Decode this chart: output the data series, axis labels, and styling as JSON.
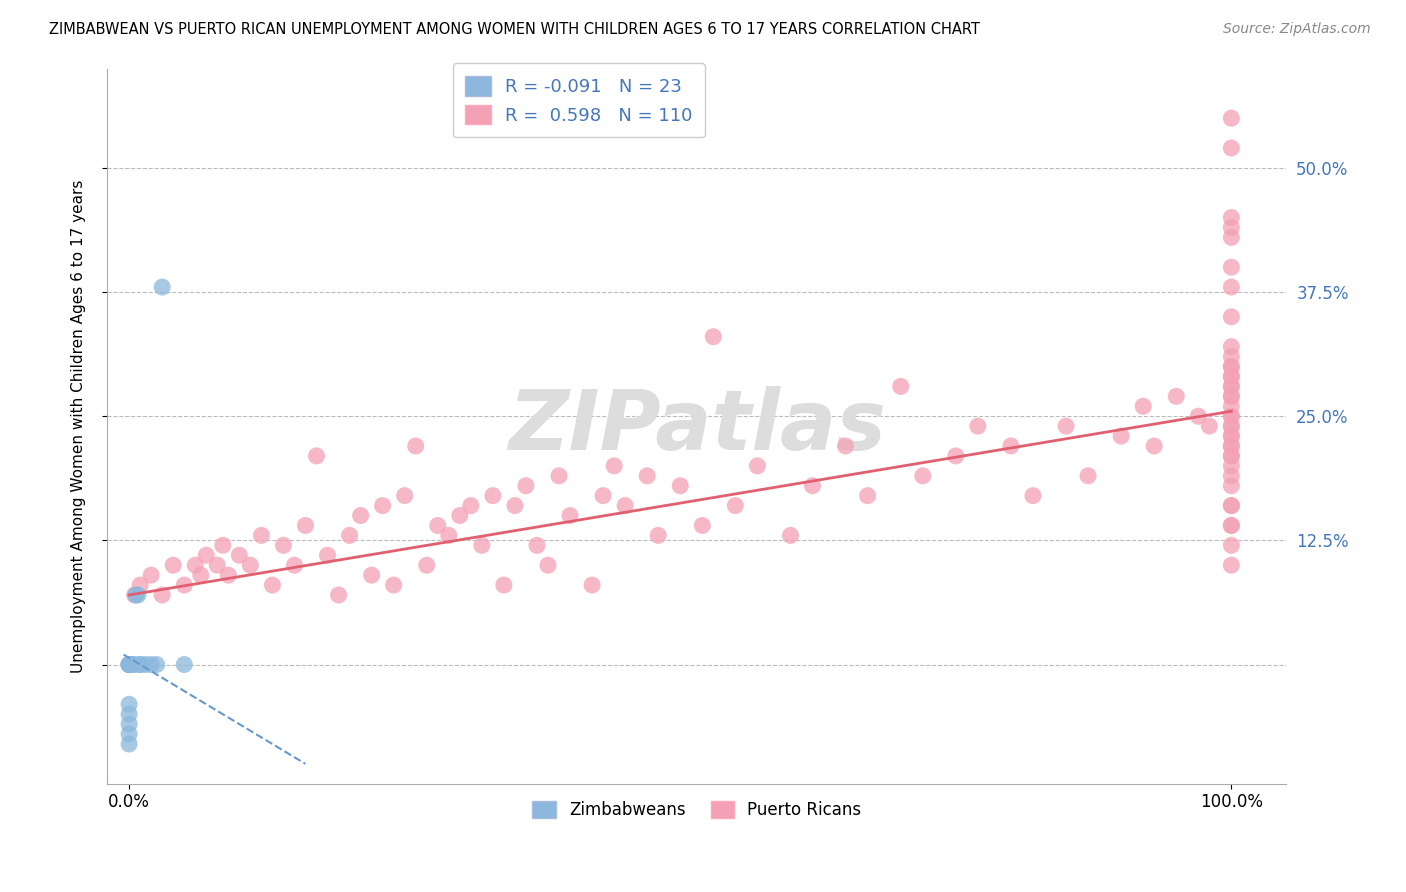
{
  "title": "ZIMBABWEAN VS PUERTO RICAN UNEMPLOYMENT AMONG WOMEN WITH CHILDREN AGES 6 TO 17 YEARS CORRELATION CHART",
  "source": "Source: ZipAtlas.com",
  "ylabel": "Unemployment Among Women with Children Ages 6 to 17 years",
  "xlim": [
    -0.02,
    1.05
  ],
  "ylim": [
    -0.12,
    0.6
  ],
  "zimbabwean_color": "#8BB8DC",
  "puerto_rican_color": "#F4A0B5",
  "trend_zim_color": "#6699CC",
  "trend_pr_color": "#E06070",
  "watermark_color": "#DDDDDD",
  "label_color": "#4477BB",
  "legend_r_zim": "-0.091",
  "legend_n_zim": "23",
  "legend_r_pr": "0.598",
  "legend_n_pr": "110",
  "zim_x": [
    0.0,
    0.0,
    0.0,
    0.0,
    0.0,
    0.0,
    0.0,
    0.0,
    0.0,
    0.0,
    0.0,
    0.002,
    0.003,
    0.005,
    0.006,
    0.008,
    0.01,
    0.01,
    0.015,
    0.02,
    0.025,
    0.03,
    0.05
  ],
  "zim_y": [
    -0.08,
    -0.07,
    -0.06,
    -0.05,
    -0.04,
    0.0,
    0.0,
    0.0,
    0.0,
    0.0,
    0.0,
    0.0,
    0.0,
    0.0,
    0.07,
    0.07,
    0.0,
    0.0,
    0.0,
    0.0,
    0.0,
    0.38,
    0.0
  ],
  "pr_x": [
    0.005,
    0.01,
    0.02,
    0.03,
    0.04,
    0.05,
    0.06,
    0.065,
    0.07,
    0.08,
    0.085,
    0.09,
    0.1,
    0.11,
    0.12,
    0.13,
    0.14,
    0.15,
    0.16,
    0.17,
    0.18,
    0.19,
    0.2,
    0.21,
    0.22,
    0.23,
    0.24,
    0.25,
    0.26,
    0.27,
    0.28,
    0.29,
    0.3,
    0.31,
    0.32,
    0.33,
    0.34,
    0.35,
    0.36,
    0.37,
    0.38,
    0.39,
    0.4,
    0.42,
    0.43,
    0.44,
    0.45,
    0.47,
    0.48,
    0.5,
    0.52,
    0.53,
    0.55,
    0.57,
    0.6,
    0.62,
    0.65,
    0.67,
    0.7,
    0.72,
    0.75,
    0.77,
    0.8,
    0.82,
    0.85,
    0.87,
    0.9,
    0.92,
    0.93,
    0.95,
    0.97,
    0.98,
    1.0,
    1.0,
    1.0,
    1.0,
    1.0,
    1.0,
    1.0,
    1.0,
    1.0,
    1.0,
    1.0,
    1.0,
    1.0,
    1.0,
    1.0,
    1.0,
    1.0,
    1.0,
    1.0,
    1.0,
    1.0,
    1.0,
    1.0,
    1.0,
    1.0,
    1.0,
    1.0,
    1.0,
    1.0,
    1.0,
    1.0,
    1.0,
    1.0,
    1.0,
    1.0,
    1.0,
    1.0,
    1.0
  ],
  "pr_y": [
    0.07,
    0.08,
    0.09,
    0.07,
    0.1,
    0.08,
    0.1,
    0.09,
    0.11,
    0.1,
    0.12,
    0.09,
    0.11,
    0.1,
    0.13,
    0.08,
    0.12,
    0.1,
    0.14,
    0.21,
    0.11,
    0.07,
    0.13,
    0.15,
    0.09,
    0.16,
    0.08,
    0.17,
    0.22,
    0.1,
    0.14,
    0.13,
    0.15,
    0.16,
    0.12,
    0.17,
    0.08,
    0.16,
    0.18,
    0.12,
    0.1,
    0.19,
    0.15,
    0.08,
    0.17,
    0.2,
    0.16,
    0.19,
    0.13,
    0.18,
    0.14,
    0.33,
    0.16,
    0.2,
    0.13,
    0.18,
    0.22,
    0.17,
    0.28,
    0.19,
    0.21,
    0.24,
    0.22,
    0.17,
    0.24,
    0.19,
    0.23,
    0.26,
    0.22,
    0.27,
    0.25,
    0.24,
    0.12,
    0.14,
    0.16,
    0.18,
    0.19,
    0.2,
    0.21,
    0.22,
    0.23,
    0.24,
    0.25,
    0.26,
    0.27,
    0.28,
    0.29,
    0.3,
    0.22,
    0.24,
    0.28,
    0.3,
    0.32,
    0.21,
    0.23,
    0.25,
    0.27,
    0.29,
    0.31,
    0.35,
    0.38,
    0.4,
    0.43,
    0.44,
    0.45,
    0.14,
    0.16,
    0.52,
    0.55,
    0.1
  ],
  "pr_trend_x0": 0.0,
  "pr_trend_x1": 1.0,
  "pr_trend_y0": 0.07,
  "pr_trend_y1": 0.255,
  "zim_trend_x0": -0.005,
  "zim_trend_x1": 0.16,
  "zim_trend_y0": 0.01,
  "zim_trend_y1": -0.1,
  "ytick_positions": [
    0.0,
    0.125,
    0.25,
    0.375,
    0.5
  ],
  "ytick_labels": [
    "",
    "12.5%",
    "25.0%",
    "37.5%",
    "50.0%"
  ],
  "xtick_left_label": "0.0%",
  "xtick_right_label": "100.0%",
  "legend_zim_label": "Zimbabweans",
  "legend_pr_label": "Puerto Ricans"
}
